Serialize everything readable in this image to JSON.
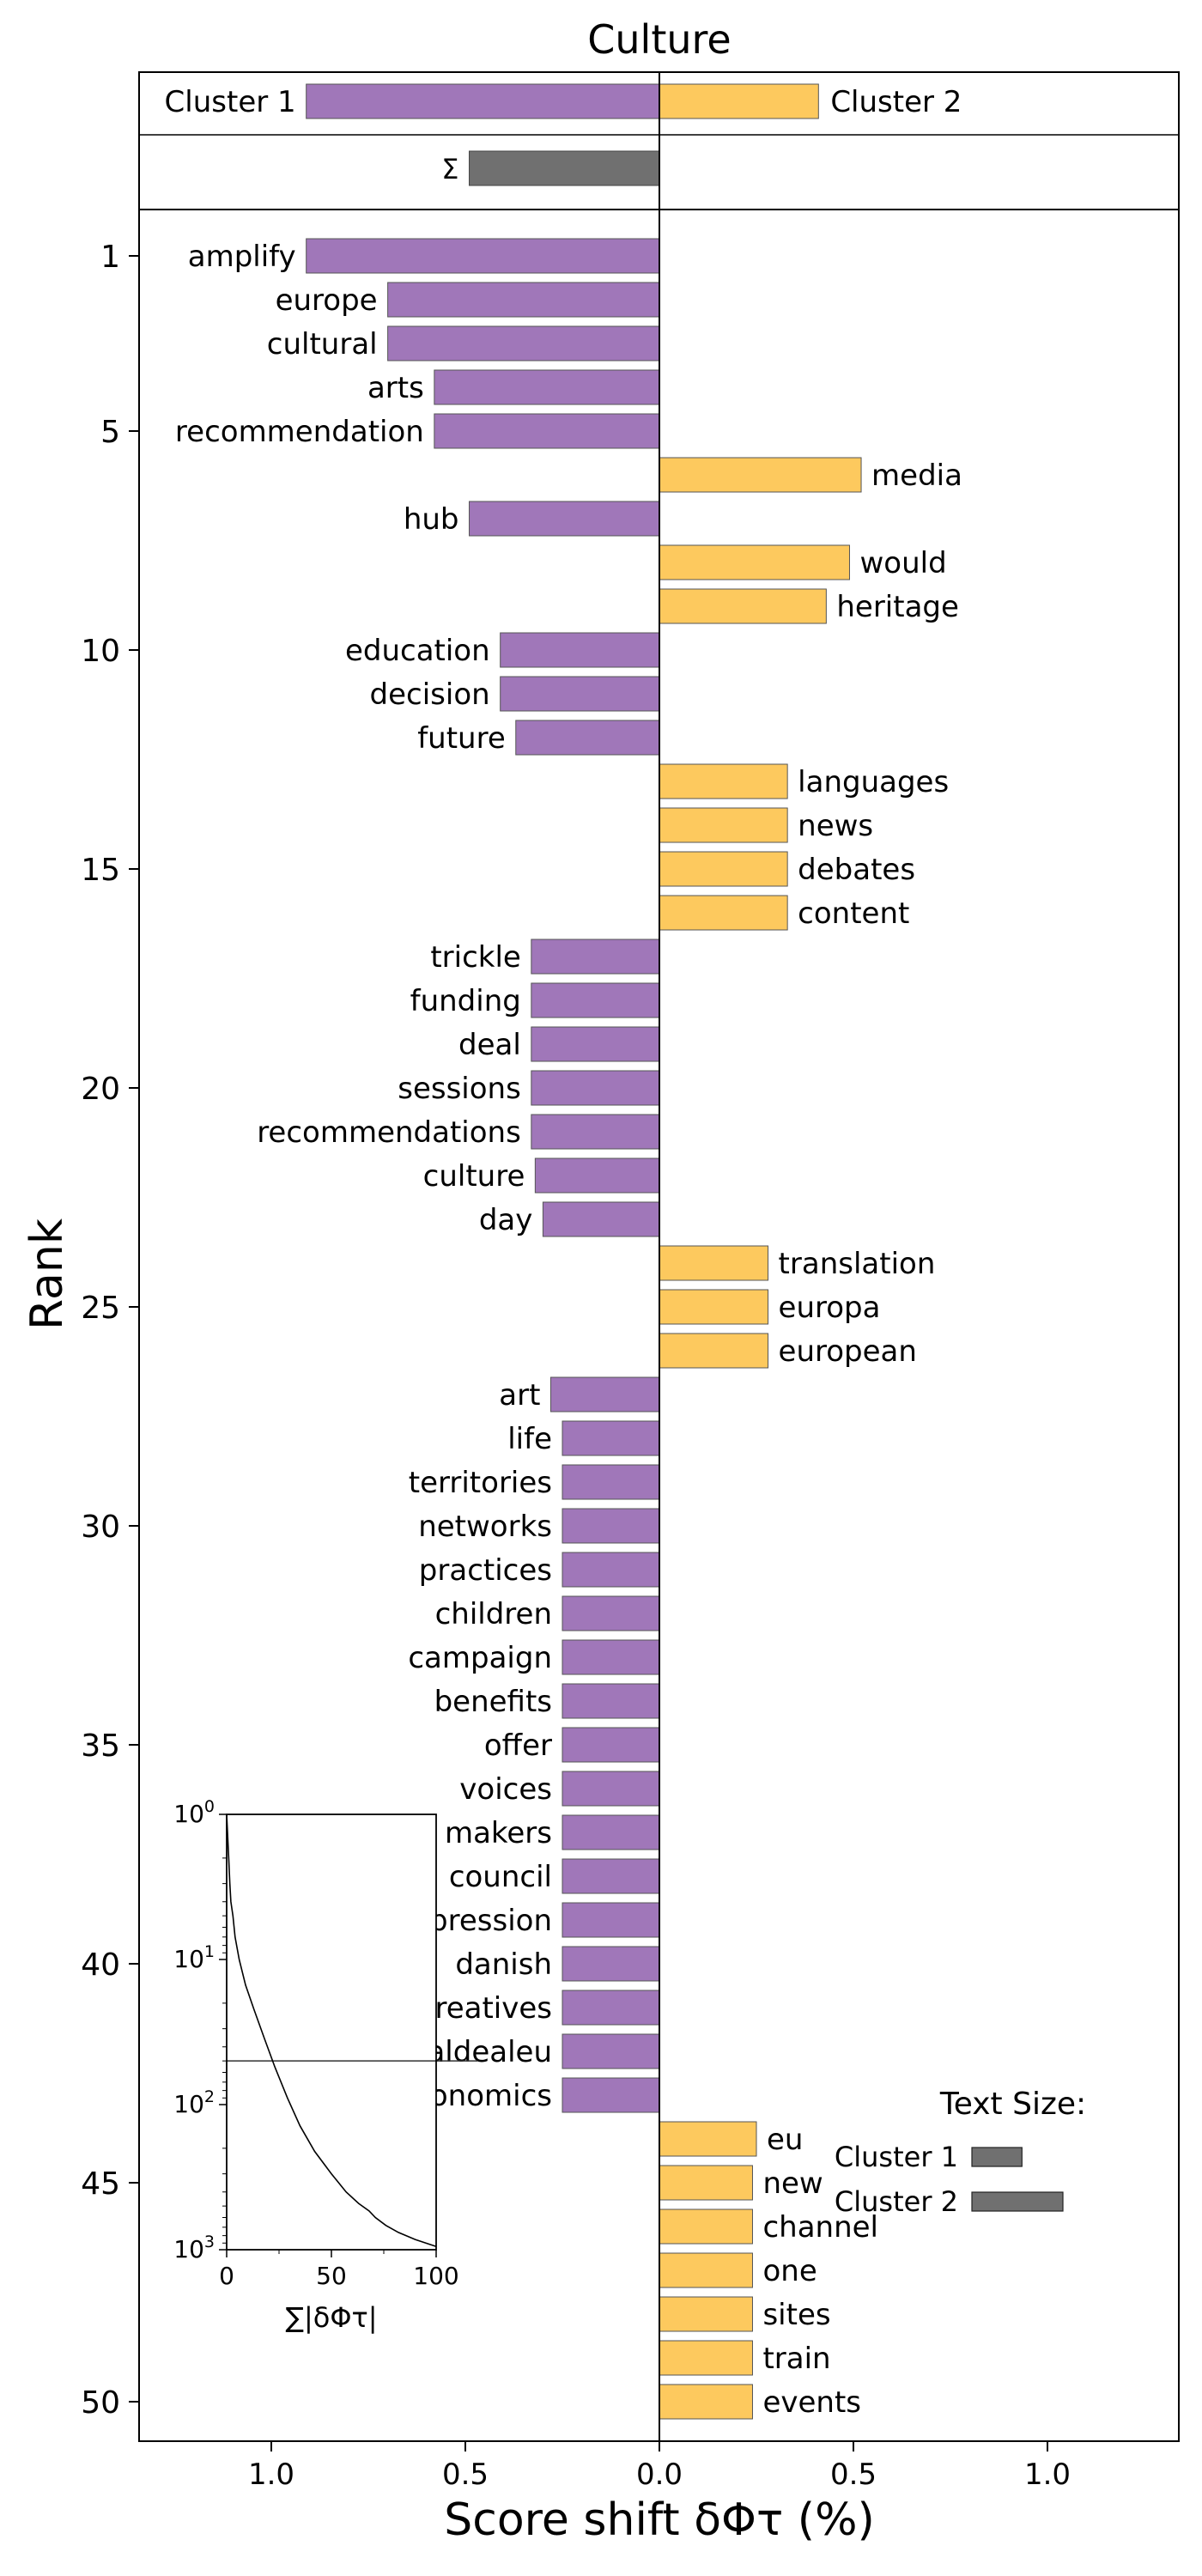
{
  "chart_data": {
    "type": "bar",
    "orientation": "horizontal",
    "title": "Culture",
    "xlabel": "Score shift δΦτ (%)",
    "ylabel": "Rank",
    "xlim": [
      -1.3,
      1.3
    ],
    "x_ticks": [
      {
        "value": -1.0,
        "label": "1.0"
      },
      {
        "value": -0.5,
        "label": "0.5"
      },
      {
        "value": 0.0,
        "label": "0.0"
      },
      {
        "value": 0.5,
        "label": "0.5"
      },
      {
        "value": 1.0,
        "label": "1.0"
      }
    ],
    "y_ticks": [
      1,
      5,
      10,
      15,
      20,
      25,
      30,
      35,
      40,
      45,
      50
    ],
    "colors": {
      "cluster1": "#a077b9",
      "cluster2": "#fdc95e",
      "sum": "#707070",
      "edge": "#555555"
    },
    "summary": {
      "cluster1_label": "Cluster 1",
      "cluster2_label": "Cluster 2",
      "cluster1_total": -0.91,
      "cluster2_total": 0.41,
      "sum_symbol": "Σ",
      "sum_value": -0.49
    },
    "words": [
      {
        "rank": 1,
        "word": "amplify",
        "value": -0.91
      },
      {
        "rank": 2,
        "word": "europe",
        "value": -0.7
      },
      {
        "rank": 3,
        "word": "cultural",
        "value": -0.7
      },
      {
        "rank": 4,
        "word": "arts",
        "value": -0.58
      },
      {
        "rank": 5,
        "word": "recommendation",
        "value": -0.58
      },
      {
        "rank": 6,
        "word": "media",
        "value": 0.52
      },
      {
        "rank": 7,
        "word": "hub",
        "value": -0.49
      },
      {
        "rank": 8,
        "word": "would",
        "value": 0.49
      },
      {
        "rank": 9,
        "word": "heritage",
        "value": 0.43
      },
      {
        "rank": 10,
        "word": "education",
        "value": -0.41
      },
      {
        "rank": 11,
        "word": "decision",
        "value": -0.41
      },
      {
        "rank": 12,
        "word": "future",
        "value": -0.37
      },
      {
        "rank": 13,
        "word": "languages",
        "value": 0.33
      },
      {
        "rank": 14,
        "word": "news",
        "value": 0.33
      },
      {
        "rank": 15,
        "word": "debates",
        "value": 0.33
      },
      {
        "rank": 16,
        "word": "content",
        "value": 0.33
      },
      {
        "rank": 17,
        "word": "trickle",
        "value": -0.33
      },
      {
        "rank": 18,
        "word": "funding",
        "value": -0.33
      },
      {
        "rank": 19,
        "word": "deal",
        "value": -0.33
      },
      {
        "rank": 20,
        "word": "sessions",
        "value": -0.33
      },
      {
        "rank": 21,
        "word": "recommendations",
        "value": -0.33
      },
      {
        "rank": 22,
        "word": "culture",
        "value": -0.32
      },
      {
        "rank": 23,
        "word": "day",
        "value": -0.3
      },
      {
        "rank": 24,
        "word": "translation",
        "value": 0.28
      },
      {
        "rank": 25,
        "word": "europa",
        "value": 0.28
      },
      {
        "rank": 26,
        "word": "european",
        "value": 0.28
      },
      {
        "rank": 27,
        "word": "art",
        "value": -0.28
      },
      {
        "rank": 28,
        "word": "life",
        "value": -0.25
      },
      {
        "rank": 29,
        "word": "territories",
        "value": -0.25
      },
      {
        "rank": 30,
        "word": "networks",
        "value": -0.25
      },
      {
        "rank": 31,
        "word": "practices",
        "value": -0.25
      },
      {
        "rank": 32,
        "word": "children",
        "value": -0.25
      },
      {
        "rank": 33,
        "word": "campaign",
        "value": -0.25
      },
      {
        "rank": 34,
        "word": "benefits",
        "value": -0.25
      },
      {
        "rank": 35,
        "word": "offer",
        "value": -0.25
      },
      {
        "rank": 36,
        "word": "voices",
        "value": -0.25
      },
      {
        "rank": 37,
        "word": "makers",
        "value": -0.25
      },
      {
        "rank": 38,
        "word": "council",
        "value": -0.25
      },
      {
        "rank": 39,
        "word": "expression",
        "value": -0.25
      },
      {
        "rank": 40,
        "word": "danish",
        "value": -0.25
      },
      {
        "rank": 41,
        "word": "creatives",
        "value": -0.25
      },
      {
        "rank": 42,
        "word": "culturaldealeu",
        "value": -0.25
      },
      {
        "rank": 43,
        "word": "economics",
        "value": -0.25
      },
      {
        "rank": 44,
        "word": "eu",
        "value": 0.25
      },
      {
        "rank": 45,
        "word": "new",
        "value": 0.24
      },
      {
        "rank": 46,
        "word": "channel",
        "value": 0.24
      },
      {
        "rank": 47,
        "word": "one",
        "value": 0.24
      },
      {
        "rank": 48,
        "word": "sites",
        "value": 0.24
      },
      {
        "rank": 49,
        "word": "train",
        "value": 0.24
      },
      {
        "rank": 50,
        "word": "events",
        "value": 0.24
      }
    ],
    "inset": {
      "type": "line",
      "xlabel": "∑|δΦτ|",
      "x_range": [
        0,
        100
      ],
      "x_ticks": [
        0,
        50,
        100
      ],
      "y_scale": "log",
      "y_inverted": true,
      "y_range": [
        1,
        1000
      ],
      "y_ticks": [
        {
          "value": 1,
          "base": "10",
          "exp": "0"
        },
        {
          "value": 10,
          "base": "10",
          "exp": "1"
        },
        {
          "value": 100,
          "base": "10",
          "exp": "2"
        },
        {
          "value": 1000,
          "base": "10",
          "exp": "3"
        }
      ],
      "reference_rank": 50,
      "curve": [
        [
          0,
          1
        ],
        [
          1,
          2
        ],
        [
          1.5,
          3
        ],
        [
          2,
          4
        ],
        [
          3,
          5
        ],
        [
          4,
          7
        ],
        [
          6,
          10
        ],
        [
          9,
          15
        ],
        [
          13,
          22
        ],
        [
          18,
          35
        ],
        [
          23,
          55
        ],
        [
          29,
          90
        ],
        [
          35,
          140
        ],
        [
          42,
          210
        ],
        [
          50,
          300
        ],
        [
          57,
          400
        ],
        [
          63,
          480
        ],
        [
          68,
          540
        ],
        [
          71,
          600
        ],
        [
          76,
          680
        ],
        [
          82,
          760
        ],
        [
          90,
          850
        ],
        [
          100,
          950
        ]
      ]
    },
    "text_size_legend": {
      "title": "Text Size:",
      "entries": [
        {
          "label": "Cluster 1",
          "relative_size": 0.55
        },
        {
          "label": "Cluster 2",
          "relative_size": 1.0
        }
      ]
    }
  }
}
